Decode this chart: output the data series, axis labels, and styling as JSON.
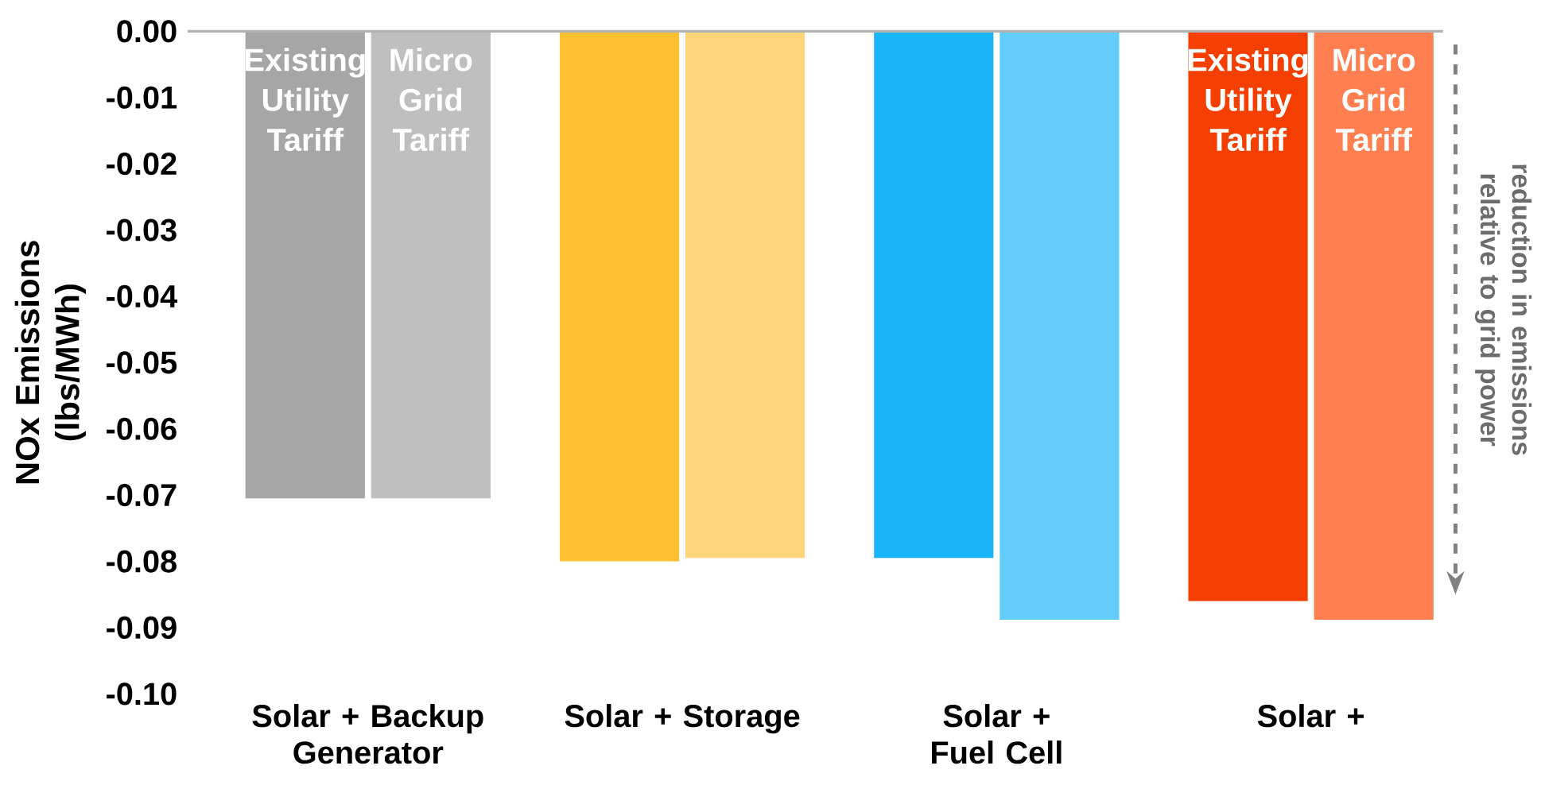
{
  "chart_data": {
    "type": "bar",
    "ylabel": "NOx Emissions (lbs/MWh)",
    "categories": [
      "Solar + Backup Generator",
      "Solar + Storage",
      "Solar + Fuel Cell",
      "Solar +"
    ],
    "series": [
      {
        "name": "Existing Utility Tariff",
        "colors": [
          "#a6a6a6",
          "#ffc132",
          "#1ab5f8",
          "#f53f00"
        ],
        "values": [
          -0.0705,
          -0.08,
          -0.0795,
          -0.086
        ]
      },
      {
        "name": "Micro Grid Tariff",
        "colors": [
          "#bfbfbf",
          "#ffd57a",
          "#62cdfb",
          "#ff7f50"
        ],
        "values": [
          -0.0705,
          -0.0795,
          -0.0888,
          -0.0888
        ]
      }
    ],
    "ylim": [
      -0.1,
      0.0
    ],
    "yticks": [
      {
        "value": 0,
        "label": "0.00"
      },
      {
        "value": -0.01,
        "label": "-0.01"
      },
      {
        "value": -0.02,
        "label": "-0.02"
      },
      {
        "value": -0.03,
        "label": "-0.03"
      },
      {
        "value": -0.04,
        "label": "-0.04"
      },
      {
        "value": -0.05,
        "label": "-0.05"
      },
      {
        "value": -0.06,
        "label": "-0.06"
      },
      {
        "value": -0.07,
        "label": "-0.07"
      },
      {
        "value": -0.08,
        "label": "-0.08"
      },
      {
        "value": -0.09,
        "label": "-0.09"
      },
      {
        "value": -0.1,
        "label": "-0.10"
      }
    ],
    "annotations": [
      "reduction in emissions relative to grid power"
    ],
    "grid": false,
    "legend": false
  }
}
